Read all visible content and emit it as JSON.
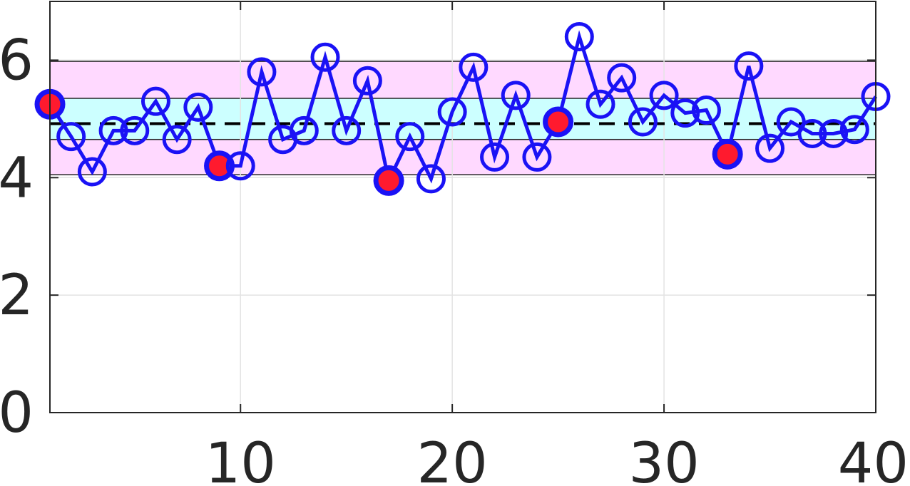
{
  "chart_data": {
    "type": "line",
    "title": "",
    "xlabel": "",
    "ylabel": "",
    "xlim": [
      1,
      40
    ],
    "ylim": [
      0,
      7
    ],
    "xticks": [
      10,
      20,
      30,
      40
    ],
    "yticks": [
      0,
      2,
      4,
      6
    ],
    "xtick_labels": [
      "10",
      "20",
      "30",
      "40"
    ],
    "ytick_labels": [
      "0",
      "2",
      "4",
      "6"
    ],
    "grid": true,
    "mean_line": 4.92,
    "inner_band": [
      4.65,
      5.35
    ],
    "outer_band": [
      4.05,
      5.98
    ],
    "colors": {
      "series": "#1a12f5",
      "highlight_fill": "#ff1a2e",
      "inner_band": "#ccffff",
      "outer_band": "#ffd9ff",
      "mean_line": "#000000",
      "grid": "#e3e3e3",
      "axis": "#262626"
    },
    "series": [
      {
        "x": [
          1,
          2,
          3,
          4,
          5,
          6,
          7,
          8,
          9,
          10,
          11,
          12,
          13,
          14,
          15,
          16,
          17,
          18,
          19,
          20,
          21,
          22,
          23,
          24,
          25,
          26,
          27,
          28,
          29,
          30,
          31,
          32,
          33,
          34,
          35,
          36,
          37,
          38,
          39,
          40
        ],
        "values": [
          5.25,
          4.7,
          4.1,
          4.8,
          4.8,
          5.3,
          4.65,
          5.2,
          4.2,
          4.2,
          5.8,
          4.65,
          4.8,
          6.05,
          4.8,
          5.65,
          3.95,
          4.7,
          3.98,
          5.12,
          5.88,
          4.35,
          5.4,
          4.35,
          4.95,
          6.4,
          5.25,
          5.7,
          4.95,
          5.4,
          5.1,
          5.15,
          4.4,
          5.9,
          4.5,
          4.95,
          4.75,
          4.75,
          4.82,
          5.38
        ]
      }
    ],
    "highlighted_x": [
      1,
      9,
      17,
      25,
      33
    ]
  }
}
